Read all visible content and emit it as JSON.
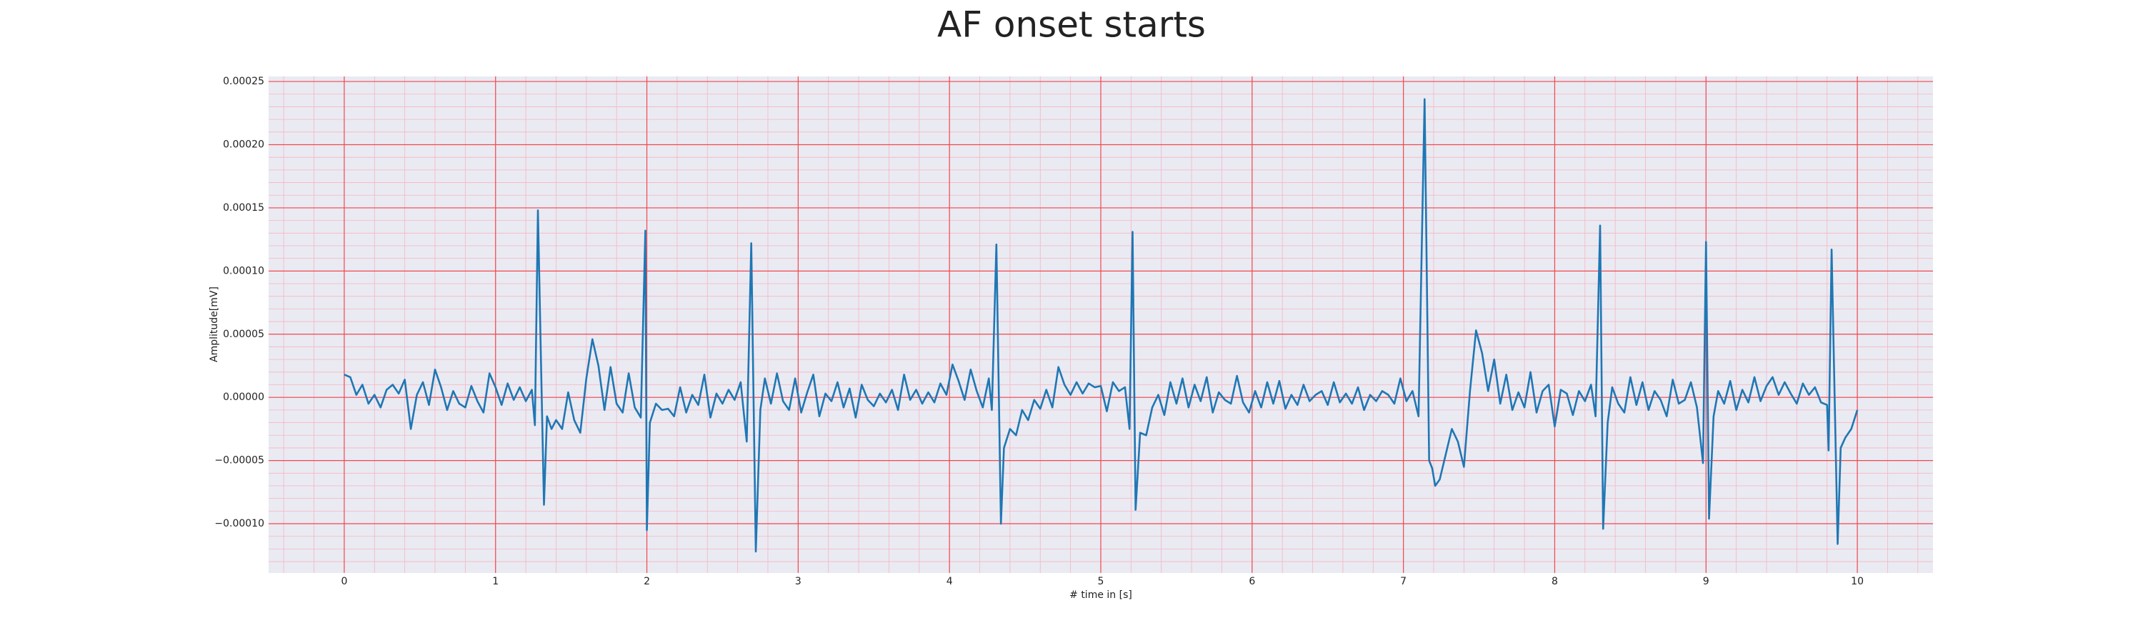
{
  "chart_data": {
    "type": "line",
    "title": "AF onset starts",
    "x_label": "# time in [s]",
    "y_label": "Amplitude[mV]",
    "color": "#1f77b4",
    "grid": true,
    "minor_grid": true,
    "xlim": [
      -0.5,
      10.5
    ],
    "xticks": [
      0,
      1,
      2,
      3,
      4,
      5,
      6,
      7,
      8,
      9,
      10
    ],
    "ylim": [
      -0.000139,
      0.000254
    ],
    "yticks": [
      {
        "value": -0.0001,
        "label": "−0.00010"
      },
      {
        "value": -5e-05,
        "label": "−0.00005"
      },
      {
        "value": 0,
        "label": "0.00000"
      },
      {
        "value": 5e-05,
        "label": "0.00005"
      },
      {
        "value": 0.0001,
        "label": "0.00010"
      },
      {
        "value": 0.00015,
        "label": "0.00015"
      },
      {
        "value": 0.0002,
        "label": "0.00020"
      },
      {
        "value": 0.00025,
        "label": "0.00025"
      }
    ],
    "x": [
      0,
      0.04,
      0.08,
      0.12,
      0.16,
      0.2,
      0.24,
      0.28,
      0.32,
      0.36,
      0.4,
      0.44,
      0.48,
      0.52,
      0.56,
      0.6,
      0.64,
      0.68,
      0.72,
      0.76,
      0.8,
      0.84,
      0.88,
      0.92,
      0.96,
      1,
      1.04,
      1.08,
      1.12,
      1.16,
      1.2,
      1.24,
      1.26,
      1.28,
      1.3,
      1.32,
      1.34,
      1.37,
      1.4,
      1.44,
      1.48,
      1.52,
      1.56,
      1.6,
      1.64,
      1.68,
      1.72,
      1.76,
      1.8,
      1.84,
      1.88,
      1.92,
      1.96,
      1.99,
      2,
      2.02,
      2.06,
      2.1,
      2.14,
      2.18,
      2.22,
      2.26,
      2.3,
      2.34,
      2.38,
      2.42,
      2.46,
      2.5,
      2.54,
      2.58,
      2.62,
      2.66,
      2.69,
      2.72,
      2.75,
      2.78,
      2.82,
      2.86,
      2.9,
      2.94,
      2.98,
      3.02,
      3.06,
      3.1,
      3.14,
      3.18,
      3.22,
      3.26,
      3.3,
      3.34,
      3.38,
      3.42,
      3.46,
      3.5,
      3.54,
      3.58,
      3.62,
      3.66,
      3.7,
      3.74,
      3.78,
      3.82,
      3.86,
      3.9,
      3.94,
      3.98,
      4.02,
      4.06,
      4.1,
      4.14,
      4.18,
      4.22,
      4.26,
      4.28,
      4.31,
      4.34,
      4.36,
      4.4,
      4.44,
      4.48,
      4.52,
      4.56,
      4.6,
      4.64,
      4.68,
      4.72,
      4.76,
      4.8,
      4.84,
      4.88,
      4.92,
      4.96,
      5,
      5.04,
      5.08,
      5.12,
      5.16,
      5.19,
      5.21,
      5.23,
      5.26,
      5.3,
      5.34,
      5.38,
      5.42,
      5.46,
      5.5,
      5.54,
      5.58,
      5.62,
      5.66,
      5.7,
      5.74,
      5.78,
      5.82,
      5.86,
      5.9,
      5.94,
      5.98,
      6.02,
      6.06,
      6.1,
      6.14,
      6.18,
      6.22,
      6.26,
      6.3,
      6.34,
      6.38,
      6.42,
      6.46,
      6.5,
      6.54,
      6.58,
      6.62,
      6.66,
      6.7,
      6.74,
      6.78,
      6.82,
      6.86,
      6.9,
      6.94,
      6.98,
      7.02,
      7.06,
      7.1,
      7.14,
      7.17,
      7.19,
      7.21,
      7.24,
      7.28,
      7.32,
      7.36,
      7.4,
      7.44,
      7.48,
      7.52,
      7.56,
      7.6,
      7.64,
      7.68,
      7.72,
      7.76,
      7.8,
      7.84,
      7.88,
      7.92,
      7.96,
      8,
      8.04,
      8.08,
      8.12,
      8.16,
      8.2,
      8.24,
      8.27,
      8.3,
      8.32,
      8.35,
      8.38,
      8.42,
      8.46,
      8.5,
      8.54,
      8.58,
      8.62,
      8.66,
      8.7,
      8.74,
      8.78,
      8.82,
      8.86,
      8.9,
      8.94,
      8.98,
      9,
      9.02,
      9.05,
      9.08,
      9.12,
      9.16,
      9.2,
      9.24,
      9.28,
      9.32,
      9.36,
      9.4,
      9.44,
      9.48,
      9.52,
      9.56,
      9.6,
      9.64,
      9.68,
      9.72,
      9.76,
      9.8,
      9.81,
      9.83,
      9.87,
      9.89,
      9.92,
      9.96,
      10
    ],
    "values": [
      1.8e-05,
      1.6e-05,
      2e-06,
      1e-05,
      -5e-06,
      2e-06,
      -8e-06,
      6e-06,
      1e-05,
      3e-06,
      1.4e-05,
      -2.5e-05,
      2e-06,
      1.2e-05,
      -6e-06,
      2.2e-05,
      8e-06,
      -1e-05,
      5e-06,
      -5e-06,
      -8e-06,
      9e-06,
      -3e-06,
      -1.2e-05,
      1.9e-05,
      8e-06,
      -6e-06,
      1.1e-05,
      -2e-06,
      8e-06,
      -3e-06,
      6e-06,
      -2.2e-05,
      0.000148,
      3e-05,
      -8.5e-05,
      -1.5e-05,
      -2.5e-05,
      -1.8e-05,
      -2.5e-05,
      4e-06,
      -1.8e-05,
      -2.8e-05,
      1.5e-05,
      4.6e-05,
      2.5e-05,
      -1e-05,
      2.4e-05,
      -5e-06,
      -1.2e-05,
      1.9e-05,
      -8e-06,
      -1.6e-05,
      0.000132,
      -0.000105,
      -2e-05,
      -5e-06,
      -1e-05,
      -9e-06,
      -1.5e-05,
      8e-06,
      -1.2e-05,
      2e-06,
      -6e-06,
      1.8e-05,
      -1.6e-05,
      3e-06,
      -5e-06,
      6e-06,
      -2e-06,
      1.2e-05,
      -3.5e-05,
      0.000122,
      -0.000122,
      -1e-05,
      1.5e-05,
      -5e-06,
      1.9e-05,
      -3e-06,
      -1e-05,
      1.5e-05,
      -1.2e-05,
      4e-06,
      1.8e-05,
      -1.5e-05,
      3e-06,
      -3e-06,
      1.2e-05,
      -8e-06,
      7e-06,
      -1.6e-05,
      1e-05,
      -2e-06,
      -7e-06,
      3e-06,
      -4e-06,
      6e-06,
      -1e-05,
      1.8e-05,
      -2e-06,
      6e-06,
      -5e-06,
      4e-06,
      -4e-06,
      1.1e-05,
      2e-06,
      2.6e-05,
      1.3e-05,
      -2e-06,
      2.2e-05,
      5e-06,
      -8e-06,
      1.5e-05,
      -1e-05,
      0.000121,
      -0.0001,
      -4e-05,
      -2.5e-05,
      -3e-05,
      -1e-05,
      -1.8e-05,
      -2e-06,
      -9e-06,
      6e-06,
      -8e-06,
      2.4e-05,
      1e-05,
      2e-06,
      1.2e-05,
      3e-06,
      1.1e-05,
      8e-06,
      9e-06,
      -1.1e-05,
      1.2e-05,
      5e-06,
      8e-06,
      -2.5e-05,
      0.000131,
      -8.9e-05,
      -2.8e-05,
      -3e-05,
      -8e-06,
      2e-06,
      -1.4e-05,
      1.2e-05,
      -5e-06,
      1.5e-05,
      -8e-06,
      1e-05,
      -3e-06,
      1.6e-05,
      -1.2e-05,
      4e-06,
      -2e-06,
      -5e-06,
      1.7e-05,
      -4e-06,
      -1.2e-05,
      5e-06,
      -8e-06,
      1.2e-05,
      -5e-06,
      1.3e-05,
      -9e-06,
      2e-06,
      -6e-06,
      1e-05,
      -3e-06,
      2e-06,
      5e-06,
      -6e-06,
      1.2e-05,
      -4e-06,
      3e-06,
      -5e-06,
      8e-06,
      -1e-05,
      2e-06,
      -3e-06,
      5e-06,
      2e-06,
      -5e-06,
      1.5e-05,
      -3e-06,
      5e-06,
      -1.5e-05,
      0.000236,
      -5e-05,
      -5.6e-05,
      -7e-05,
      -6.5e-05,
      -4.5e-05,
      -2.5e-05,
      -3.5e-05,
      -5.5e-05,
      5e-06,
      5.3e-05,
      3.5e-05,
      5e-06,
      3e-05,
      -5e-06,
      1.8e-05,
      -1e-05,
      4e-06,
      -8e-06,
      2e-05,
      -1.2e-05,
      5e-06,
      1e-05,
      -2.3e-05,
      6e-06,
      3e-06,
      -1.4e-05,
      5e-06,
      -3e-06,
      1e-05,
      -1.5e-05,
      0.000136,
      -0.000104,
      -2e-05,
      8e-06,
      -5e-06,
      -1.2e-05,
      1.6e-05,
      -6e-06,
      1.2e-05,
      -1e-05,
      5e-06,
      -2e-06,
      -1.5e-05,
      1.4e-05,
      -5e-06,
      -2e-06,
      1.2e-05,
      -8e-06,
      -5.2e-05,
      0.000123,
      -9.6e-05,
      -1.5e-05,
      5e-06,
      -5e-06,
      1.3e-05,
      -1e-05,
      6e-06,
      -4e-06,
      1.6e-05,
      -3e-06,
      9e-06,
      1.6e-05,
      2e-06,
      1.2e-05,
      3e-06,
      -5e-06,
      1.1e-05,
      2e-06,
      8e-06,
      -4e-06,
      -6e-06,
      -4.2e-05,
      0.000117,
      -0.000116,
      -4e-05,
      -3.2e-05,
      -2.5e-05,
      -1e-05
    ]
  }
}
